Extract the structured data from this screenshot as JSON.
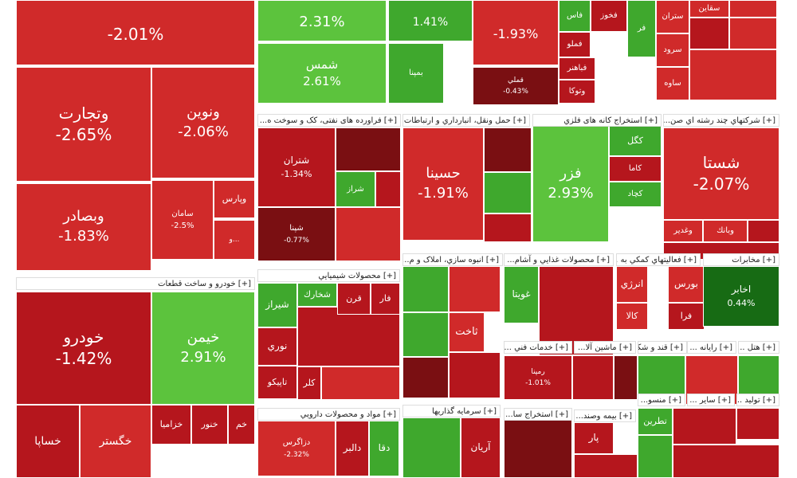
{
  "colors": {
    "deep_red": "#7a0f12",
    "red": "#b5161d",
    "light_red": "#d02a2a",
    "green": "#3fa82d",
    "light_green": "#5cc33d",
    "dark_green": "#176b14"
  },
  "sector_headers": [
    "[+] خودرو و ساخت قطعات",
    "[+] فراورده های نفتی، کک و سوخت ه...",
    "[+] حمل ونقل، انبارداري و ارتباطات",
    "[+] استخراج کانه های فلزي",
    "[+] شرکتهاي چند رشته اي صن...",
    "[+] انبوه سازي، املاک و م...",
    "[+] محصولات غذايي و آشام...",
    "[+] فعاليتهاي کمکي به ...",
    "[+] مخابرات",
    "[+] محصولات شيميايي",
    "[+] خدمات فني ...",
    "[+] ماشين آلا...",
    "[+] قند و شکر",
    "[+] رايانه ...",
    "[+] هتل ...",
    "[+] مواد و محصولات دارويي",
    "[+] سرمايه گذاريها",
    "[+] استخراج سا...",
    "[+] بيمه وصند...",
    "[+] منسو...",
    "[+] ساير ...",
    "[+] توليد ..."
  ],
  "chart_data": {
    "type": "heatmap",
    "cells": [
      {
        "name": "",
        "pct": "-2.01%",
        "change": -2.01
      },
      {
        "name": "",
        "pct": "2.31%",
        "change": 2.31
      },
      {
        "name": "",
        "pct": "1.41%",
        "change": 1.41
      },
      {
        "name": "",
        "pct": "-1.93%",
        "change": -1.93
      },
      {
        "name": "وتجارت",
        "pct": "-2.65%",
        "change": -2.65
      },
      {
        "name": "ونوين",
        "pct": "-2.06%",
        "change": -2.06
      },
      {
        "name": "وبصادر",
        "pct": "-1.83%",
        "change": -1.83
      },
      {
        "name": "سامان",
        "pct": "-2.5%",
        "change": -2.5
      },
      {
        "name": "وپارس",
        "pct": "",
        "change": -2.0
      },
      {
        "name": "و...",
        "pct": "",
        "change": -2.0
      },
      {
        "name": "شمس",
        "pct": "2.61%",
        "change": 2.61
      },
      {
        "name": "بمپنا",
        "pct": "",
        "change": 1.0
      },
      {
        "name": "قملي",
        "pct": "-0.43%",
        "change": -0.43
      },
      {
        "name": "فاس",
        "pct": "",
        "change": 1.5
      },
      {
        "name": "فخوز",
        "pct": "",
        "change": -1.0
      },
      {
        "name": "فملو",
        "pct": "",
        "change": -1.5
      },
      {
        "name": "فر",
        "pct": "",
        "change": 1.0
      },
      {
        "name": "فباهنر",
        "pct": "",
        "change": -1.5
      },
      {
        "name": "وتوكا",
        "pct": "",
        "change": -1.5
      },
      {
        "name": "ستران",
        "pct": "",
        "change": -2.0
      },
      {
        "name": "سقاين",
        "pct": "",
        "change": -2.0
      },
      {
        "name": "سرود",
        "pct": "",
        "change": -2.0
      },
      {
        "name": "ساوه",
        "pct": "",
        "change": -2.0
      },
      {
        "name": "شتران",
        "pct": "-1.34%",
        "change": -1.34
      },
      {
        "name": "شپنا",
        "pct": "-0.77%",
        "change": -0.77
      },
      {
        "name": "شراز",
        "pct": "",
        "change": 1.0
      },
      {
        "name": "حسينا",
        "pct": "-1.91%",
        "change": -1.91
      },
      {
        "name": "فزر",
        "pct": "2.93%",
        "change": 2.93
      },
      {
        "name": "كگل",
        "pct": "",
        "change": 1.5
      },
      {
        "name": "کاما",
        "pct": "",
        "change": -1.5
      },
      {
        "name": "کچاد",
        "pct": "",
        "change": 1.0
      },
      {
        "name": "شستا",
        "pct": "-2.07%",
        "change": -2.07
      },
      {
        "name": "وغدير",
        "pct": "",
        "change": -2.0
      },
      {
        "name": "وبانك",
        "pct": "",
        "change": -2.0
      },
      {
        "name": "خودرو",
        "pct": "-1.42%",
        "change": -1.42
      },
      {
        "name": "خيمن",
        "pct": "2.91%",
        "change": 2.91
      },
      {
        "name": "خساپا",
        "pct": "",
        "change": -1.5
      },
      {
        "name": "خگستر",
        "pct": "",
        "change": -2.0
      },
      {
        "name": "خزاميا",
        "pct": "",
        "change": -1.5
      },
      {
        "name": "خنور",
        "pct": "",
        "change": -1.5
      },
      {
        "name": "خم",
        "pct": "",
        "change": -1.5
      },
      {
        "name": "شيراز",
        "pct": "",
        "change": 1.2
      },
      {
        "name": "شخارك",
        "pct": "",
        "change": 1.2
      },
      {
        "name": "قرن",
        "pct": "",
        "change": -1.5
      },
      {
        "name": "فار",
        "pct": "",
        "change": -1.5
      },
      {
        "name": "نوري",
        "pct": "",
        "change": -1.5
      },
      {
        "name": "تاپيكو",
        "pct": "",
        "change": -1.5
      },
      {
        "name": "كلر",
        "pct": "",
        "change": -1.5
      },
      {
        "name": "ثاخت",
        "pct": "",
        "change": -1.8
      },
      {
        "name": "غويتا",
        "pct": "",
        "change": 1.5
      },
      {
        "name": "انرژي",
        "pct": "",
        "change": -1.8
      },
      {
        "name": "بورس",
        "pct": "",
        "change": -1.8
      },
      {
        "name": "فرا",
        "pct": "",
        "change": -1.5
      },
      {
        "name": "كالا",
        "pct": "",
        "change": -1.8
      },
      {
        "name": "اخابر",
        "pct": "0.44%",
        "change": 0.44
      },
      {
        "name": "رمپنا",
        "pct": "-1.01%",
        "change": -1.01
      },
      {
        "name": "دزاگرس",
        "pct": "-2.32%",
        "change": -2.32
      },
      {
        "name": "دالبر",
        "pct": "",
        "change": -1.5
      },
      {
        "name": "دقا",
        "pct": "",
        "change": 1.2
      },
      {
        "name": "آريان",
        "pct": "",
        "change": -1.5
      },
      {
        "name": "پار",
        "pct": "",
        "change": -1.5
      },
      {
        "name": "تطرين",
        "pct": "",
        "change": 1.2
      }
    ]
  }
}
